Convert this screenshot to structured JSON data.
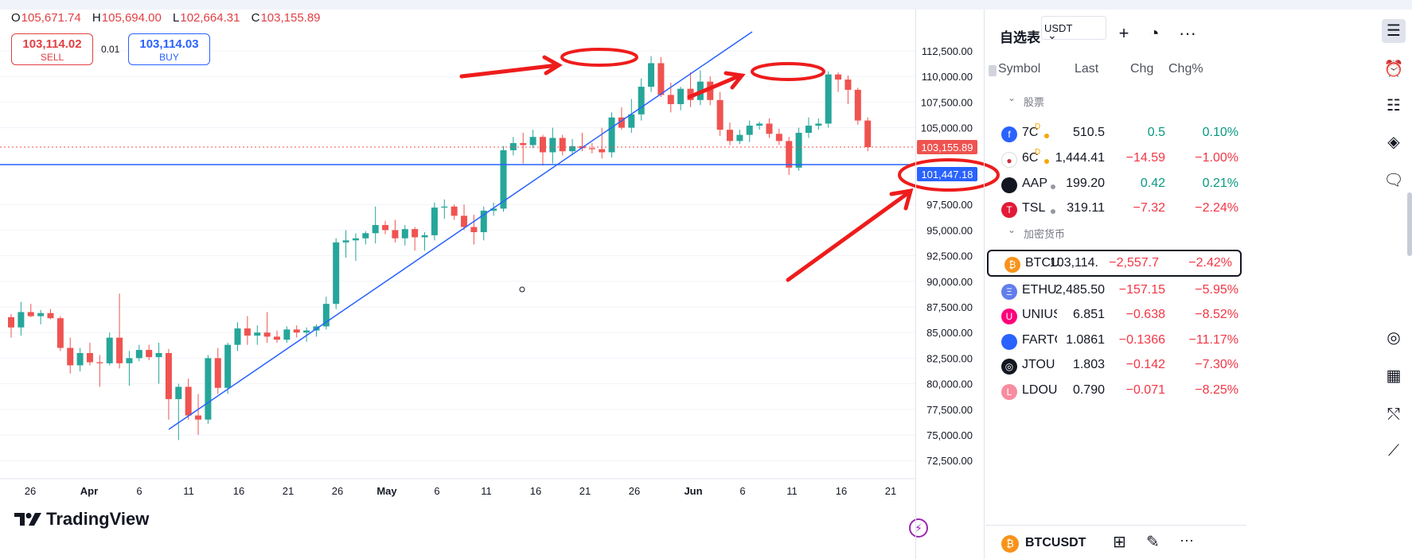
{
  "chart": {
    "ohlc": {
      "o_key": "O",
      "o": "105,671.74",
      "h_key": "H",
      "h": "105,694.00",
      "l_key": "L",
      "l": "102,664.31",
      "c_key": "C",
      "c": "103,155.89"
    },
    "sell": {
      "price": "103,114.02",
      "label": "SELL"
    },
    "spread": "0.01",
    "buy": {
      "price": "103,114.03",
      "label": "BUY"
    },
    "currency": "USDT",
    "price_labels": [
      "112,500.00",
      "110,000.00",
      "107,500.00",
      "105,000.00",
      "97,500.00",
      "95,000.00",
      "92,500.00",
      "90,000.00",
      "87,500.00",
      "85,000.00",
      "82,500.00",
      "80,000.00",
      "77,500.00",
      "75,000.00",
      "72,500.00"
    ],
    "last_price_tag": "103,155.89",
    "line_price_tag": "101,447.18",
    "date_labels": [
      "26",
      "Apr",
      "6",
      "11",
      "16",
      "21",
      "26",
      "May",
      "6",
      "11",
      "16",
      "21",
      "26",
      "Jun",
      "6",
      "11",
      "16",
      "21"
    ],
    "logo": "TradingView",
    "colors": {
      "up": "#26a69a",
      "down": "#ef5350",
      "line": "#2962ff",
      "annotation": "#ee1c1c"
    }
  },
  "chart_data": {
    "type": "candlestick",
    "ylim": [
      71000,
      115000
    ],
    "candles": [
      [
        86500,
        86800,
        84500,
        85500
      ],
      [
        85500,
        88000,
        84700,
        87000
      ],
      [
        87000,
        87800,
        86500,
        86600
      ],
      [
        86600,
        87200,
        85800,
        86900
      ],
      [
        86900,
        87300,
        86300,
        86400
      ],
      [
        86400,
        86600,
        83200,
        83500
      ],
      [
        83500,
        84500,
        81000,
        81800
      ],
      [
        81800,
        83500,
        81200,
        83000
      ],
      [
        83000,
        84000,
        81800,
        82100
      ],
      [
        82100,
        82800,
        79700,
        82000
      ],
      [
        82000,
        85000,
        81800,
        84500
      ],
      [
        84500,
        88800,
        81500,
        82000
      ],
      [
        82000,
        83200,
        79800,
        82500
      ],
      [
        82500,
        83800,
        82200,
        83300
      ],
      [
        83300,
        83800,
        82300,
        82600
      ],
      [
        82600,
        84000,
        80000,
        83000
      ],
      [
        83000,
        83400,
        76500,
        78500
      ],
      [
        78500,
        80000,
        74500,
        79700
      ],
      [
        79700,
        80500,
        76500,
        76900
      ],
      [
        76900,
        79000,
        75000,
        76500
      ],
      [
        76500,
        82800,
        76100,
        82500
      ],
      [
        82500,
        83500,
        79000,
        79600
      ],
      [
        79600,
        84000,
        79000,
        83800
      ],
      [
        83800,
        86000,
        83200,
        85400
      ],
      [
        85400,
        86600,
        83800,
        84700
      ],
      [
        84700,
        85700,
        83800,
        85000
      ],
      [
        85000,
        87000,
        84000,
        84600
      ],
      [
        84600,
        85200,
        84000,
        84300
      ],
      [
        84300,
        85600,
        84000,
        85300
      ],
      [
        85300,
        85700,
        84500,
        85000
      ],
      [
        85000,
        85500,
        84100,
        85200
      ],
      [
        85200,
        85800,
        84600,
        85600
      ],
      [
        85600,
        88500,
        85300,
        87800
      ],
      [
        87800,
        94200,
        87300,
        93800
      ],
      [
        93800,
        95000,
        92300,
        94000
      ],
      [
        94000,
        94700,
        92000,
        94200
      ],
      [
        94200,
        94900,
        93600,
        94700
      ],
      [
        94700,
        97300,
        93700,
        95500
      ],
      [
        95500,
        95900,
        94600,
        95000
      ],
      [
        95000,
        96000,
        93800,
        94200
      ],
      [
        94200,
        95500,
        93500,
        95100
      ],
      [
        95100,
        95300,
        93000,
        94300
      ],
      [
        94300,
        94800,
        93000,
        94500
      ],
      [
        94500,
        97700,
        94000,
        97200
      ],
      [
        97200,
        98000,
        96100,
        97300
      ],
      [
        97300,
        97500,
        96000,
        96400
      ],
      [
        96400,
        97500,
        95000,
        95300
      ],
      [
        95300,
        96500,
        93600,
        94800
      ],
      [
        94800,
        97300,
        94000,
        96900
      ],
      [
        96900,
        97700,
        96400,
        97100
      ],
      [
        97100,
        103200,
        96800,
        102800
      ],
      [
        102800,
        104100,
        102300,
        103500
      ],
      [
        103500,
        104500,
        101500,
        103300
      ],
      [
        103300,
        104800,
        103000,
        104100
      ],
      [
        104100,
        104300,
        101300,
        102600
      ],
      [
        102600,
        105000,
        101500,
        104000
      ],
      [
        104000,
        104300,
        102300,
        102700
      ],
      [
        102700,
        103900,
        102300,
        103200
      ],
      [
        103200,
        104500,
        102700,
        103000
      ],
      [
        103000,
        103500,
        102500,
        102900
      ],
      [
        102900,
        105000,
        102000,
        102600
      ],
      [
        102600,
        106500,
        102100,
        106000
      ],
      [
        106000,
        107000,
        104800,
        105000
      ],
      [
        105000,
        107800,
        104500,
        106300
      ],
      [
        106300,
        109800,
        105700,
        109000
      ],
      [
        109000,
        112000,
        108500,
        111300
      ],
      [
        111300,
        111900,
        108000,
        108200
      ],
      [
        108200,
        109400,
        106500,
        107300
      ],
      [
        107300,
        109000,
        106700,
        108800
      ],
      [
        108800,
        110400,
        107000,
        107700
      ],
      [
        107700,
        110600,
        107200,
        109500
      ],
      [
        109500,
        110000,
        107200,
        107700
      ],
      [
        107700,
        108500,
        104200,
        104800
      ],
      [
        104800,
        105500,
        103300,
        103700
      ],
      [
        103700,
        104800,
        103400,
        104300
      ],
      [
        104300,
        105700,
        103600,
        105200
      ],
      [
        105200,
        105600,
        104800,
        105400
      ],
      [
        105400,
        105900,
        104000,
        104400
      ],
      [
        104400,
        104900,
        103300,
        103700
      ],
      [
        103700,
        104100,
        100400,
        101100
      ],
      [
        101100,
        105000,
        100800,
        104500
      ],
      [
        104500,
        106000,
        104000,
        105200
      ],
      [
        105200,
        105900,
        104800,
        105400
      ],
      [
        105400,
        110500,
        105000,
        110200
      ],
      [
        110200,
        110400,
        108500,
        109700
      ],
      [
        109700,
        110100,
        107300,
        108700
      ],
      [
        108700,
        108900,
        105300,
        105700
      ],
      [
        105700,
        106000,
        102700,
        103100
      ]
    ]
  },
  "watchlist": {
    "title": "自选表",
    "headers": {
      "symbol": "Symbol",
      "last": "Last",
      "chg": "Chg",
      "pct": "Chg%"
    },
    "section_stocks": "股票",
    "section_crypto": "加密货币",
    "rows": [
      {
        "sym": "7C",
        "last": "510.5",
        "chg": "0.5",
        "pct": "0.10%",
        "dir": "up"
      },
      {
        "sym": "6C",
        "last": "1,444.41",
        "chg": "−14.59",
        "pct": "−1.00%",
        "dir": "dn"
      },
      {
        "sym": "AAP",
        "last": "199.20",
        "chg": "0.42",
        "pct": "0.21%",
        "dir": "up"
      },
      {
        "sym": "TSL",
        "last": "319.11",
        "chg": "−7.32",
        "pct": "−2.24%",
        "dir": "dn"
      },
      {
        "sym": "BTCU",
        "last": "103,114.",
        "chg": "−2,557.7",
        "pct": "−2.42%",
        "dir": "dn"
      },
      {
        "sym": "ETHU",
        "last": "2,485.50",
        "chg": "−157.15",
        "pct": "−5.95%",
        "dir": "dn"
      },
      {
        "sym": "UNIUS",
        "last": "6.851",
        "chg": "−0.638",
        "pct": "−8.52%",
        "dir": "dn"
      },
      {
        "sym": "FARTC",
        "last": "1.0861",
        "chg": "−0.1366",
        "pct": "−11.17%",
        "dir": "dn"
      },
      {
        "sym": "JTOU",
        "last": "1.803",
        "chg": "−0.142",
        "pct": "−7.30%",
        "dir": "dn"
      },
      {
        "sym": "LDOU",
        "last": "0.790",
        "chg": "−0.071",
        "pct": "−8.25%",
        "dir": "dn"
      }
    ],
    "bottom_symbol": "BTCUSDT",
    "badge": "D"
  }
}
